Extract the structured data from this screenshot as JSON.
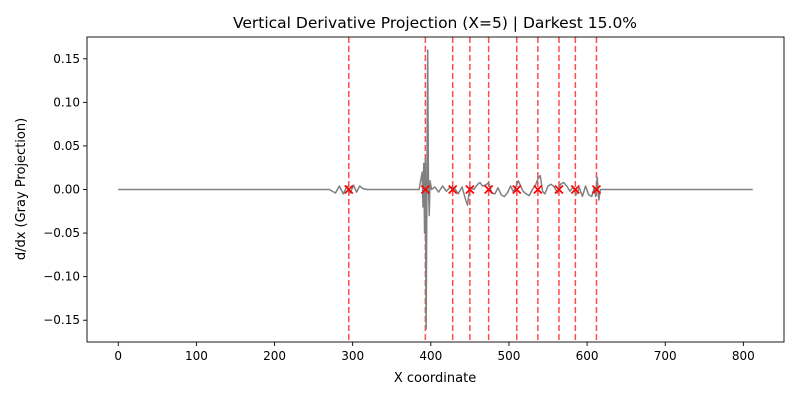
{
  "chart_data": {
    "type": "line",
    "title": "Vertical Derivative Projection (X=5) | Darkest 15.0%",
    "xlabel": "X coordinate",
    "ylabel": "d/dx (Gray Projection)",
    "xlim": [
      -40,
      852
    ],
    "ylim": [
      -0.175,
      0.175
    ],
    "x_ticks": [
      0,
      100,
      200,
      300,
      400,
      500,
      600,
      700,
      800
    ],
    "x_tick_labels": [
      "0",
      "100",
      "200",
      "300",
      "400",
      "500",
      "600",
      "700",
      "800"
    ],
    "y_ticks": [
      -0.15,
      -0.1,
      -0.05,
      0.0,
      0.05,
      0.1,
      0.15
    ],
    "y_tick_labels": [
      "−0.15",
      "−0.10",
      "−0.05",
      "0.00",
      "0.05",
      "0.10",
      "0.15"
    ],
    "grid": false,
    "series": [
      {
        "color": "#808080",
        "points": [
          [
            0,
            0.0
          ],
          [
            270,
            0.0
          ],
          [
            278,
            -0.004
          ],
          [
            283,
            0.004
          ],
          [
            288,
            -0.005
          ],
          [
            293,
            0.004
          ],
          [
            297,
            -0.004
          ],
          [
            301,
            0.005
          ],
          [
            305,
            -0.003
          ],
          [
            309,
            0.004
          ],
          [
            313,
            0.001
          ],
          [
            318,
            0.0
          ],
          [
            385,
            0.0
          ],
          [
            389,
            0.02
          ],
          [
            390,
            -0.02
          ],
          [
            391,
            0.03
          ],
          [
            392,
            -0.05
          ],
          [
            393,
            0.035
          ],
          [
            394,
            -0.16
          ],
          [
            395,
            0.0
          ],
          [
            396,
            0.16
          ],
          [
            397,
            0.0
          ],
          [
            398,
            -0.03
          ],
          [
            399,
            0.01
          ],
          [
            401,
            0.0
          ],
          [
            405,
            0.003
          ],
          [
            410,
            -0.003
          ],
          [
            415,
            0.004
          ],
          [
            420,
            -0.002
          ],
          [
            425,
            0.003
          ],
          [
            430,
            0.002
          ],
          [
            435,
            -0.005
          ],
          [
            440,
            0.003
          ],
          [
            444,
            -0.01
          ],
          [
            447,
            -0.018
          ],
          [
            450,
            0.003
          ],
          [
            455,
            0.0
          ],
          [
            460,
            0.006
          ],
          [
            463,
            0.008
          ],
          [
            466,
            0.004
          ],
          [
            470,
            0.005
          ],
          [
            474,
            0.008
          ],
          [
            478,
            -0.004
          ],
          [
            482,
            -0.005
          ],
          [
            486,
            0.002
          ],
          [
            490,
            -0.006
          ],
          [
            494,
            -0.008
          ],
          [
            498,
            -0.004
          ],
          [
            502,
            0.004
          ],
          [
            506,
            -0.003
          ],
          [
            510,
            0.006
          ],
          [
            512,
            0.01
          ],
          [
            515,
            0.004
          ],
          [
            518,
            -0.002
          ],
          [
            522,
            -0.005
          ],
          [
            526,
            -0.007
          ],
          [
            530,
            0.0
          ],
          [
            534,
            0.005
          ],
          [
            537,
            0.012
          ],
          [
            540,
            0.016
          ],
          [
            543,
            -0.002
          ],
          [
            546,
            -0.005
          ],
          [
            550,
            0.004
          ],
          [
            554,
            0.006
          ],
          [
            558,
            0.003
          ],
          [
            562,
            -0.004
          ],
          [
            566,
            0.006
          ],
          [
            570,
            0.008
          ],
          [
            574,
            0.004
          ],
          [
            578,
            -0.002
          ],
          [
            582,
            0.003
          ],
          [
            586,
            -0.006
          ],
          [
            590,
            0.002
          ],
          [
            594,
            -0.008
          ],
          [
            598,
            0.004
          ],
          [
            602,
            -0.006
          ],
          [
            606,
            -0.008
          ],
          [
            609,
            0.002
          ],
          [
            611,
            -0.008
          ],
          [
            613,
            0.014
          ],
          [
            615,
            -0.012
          ],
          [
            617,
            0.0
          ],
          [
            620,
            0.0
          ],
          [
            812,
            0.0
          ]
        ]
      }
    ],
    "vlines": {
      "color": "#ff0000",
      "style": "dashed",
      "x": [
        295,
        393,
        428,
        450,
        474,
        510,
        537,
        564,
        585,
        612
      ]
    },
    "markers": {
      "color": "#ff0000",
      "symbol": "x",
      "points": [
        [
          295,
          0.0
        ],
        [
          393,
          0.0
        ],
        [
          428,
          0.0
        ],
        [
          450,
          0.0
        ],
        [
          474,
          0.0
        ],
        [
          510,
          0.0
        ],
        [
          537,
          0.0
        ],
        [
          564,
          0.0
        ],
        [
          585,
          0.0
        ],
        [
          612,
          0.0
        ]
      ]
    }
  }
}
